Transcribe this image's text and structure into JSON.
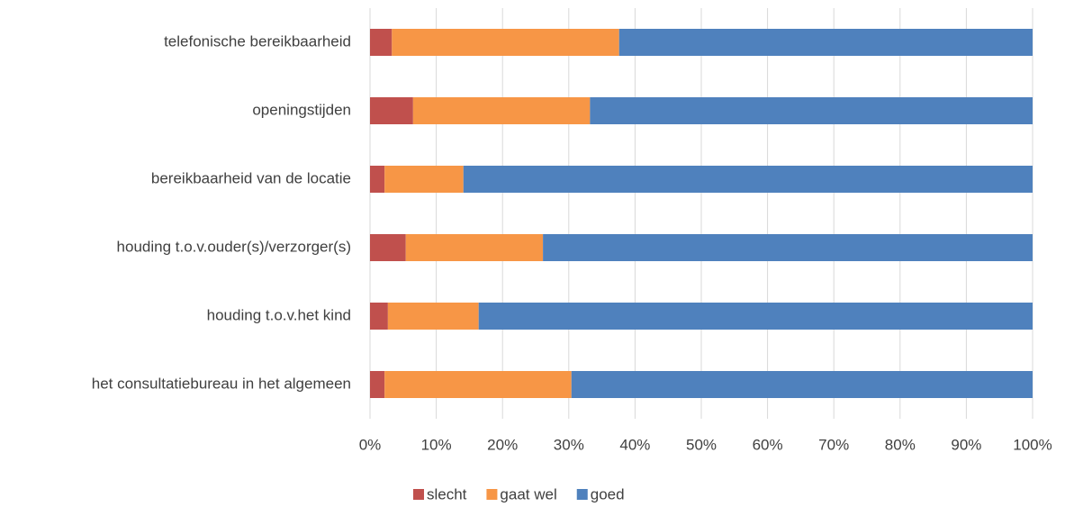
{
  "chart_data": {
    "type": "stacked_bar_horizontal",
    "categories": [
      "telefonische bereikbaarheid",
      "openingstijden",
      "bereikbaarheid van de locatie",
      "houding t.o.v.ouder(s)/verzorger(s)",
      "houding t.o.v.het kind",
      "het consultatiebureau in het algemeen"
    ],
    "series": [
      {
        "name": "slecht",
        "color": "#c0504d",
        "values": [
          3.3,
          6.5,
          2.2,
          5.4,
          2.7,
          2.2
        ]
      },
      {
        "name": "gaat wel",
        "color": "#f79646",
        "values": [
          34.3,
          26.7,
          11.9,
          20.7,
          13.7,
          28.2
        ]
      },
      {
        "name": "goed",
        "color": "#4f81bd",
        "values": [
          62.4,
          66.8,
          85.9,
          73.9,
          83.6,
          69.6
        ]
      }
    ],
    "xlim": [
      0,
      100
    ],
    "xticks": [
      {
        "value": 0,
        "label": "0%"
      },
      {
        "value": 10,
        "label": "10%"
      },
      {
        "value": 20,
        "label": "20%"
      },
      {
        "value": 30,
        "label": "30%"
      },
      {
        "value": 40,
        "label": "40%"
      },
      {
        "value": 50,
        "label": "50%"
      },
      {
        "value": 60,
        "label": "60%"
      },
      {
        "value": 70,
        "label": "70%"
      },
      {
        "value": 80,
        "label": "80%"
      },
      {
        "value": 90,
        "label": "90%"
      },
      {
        "value": 100,
        "label": "100%"
      }
    ],
    "grid": true,
    "legend": "bottom"
  }
}
